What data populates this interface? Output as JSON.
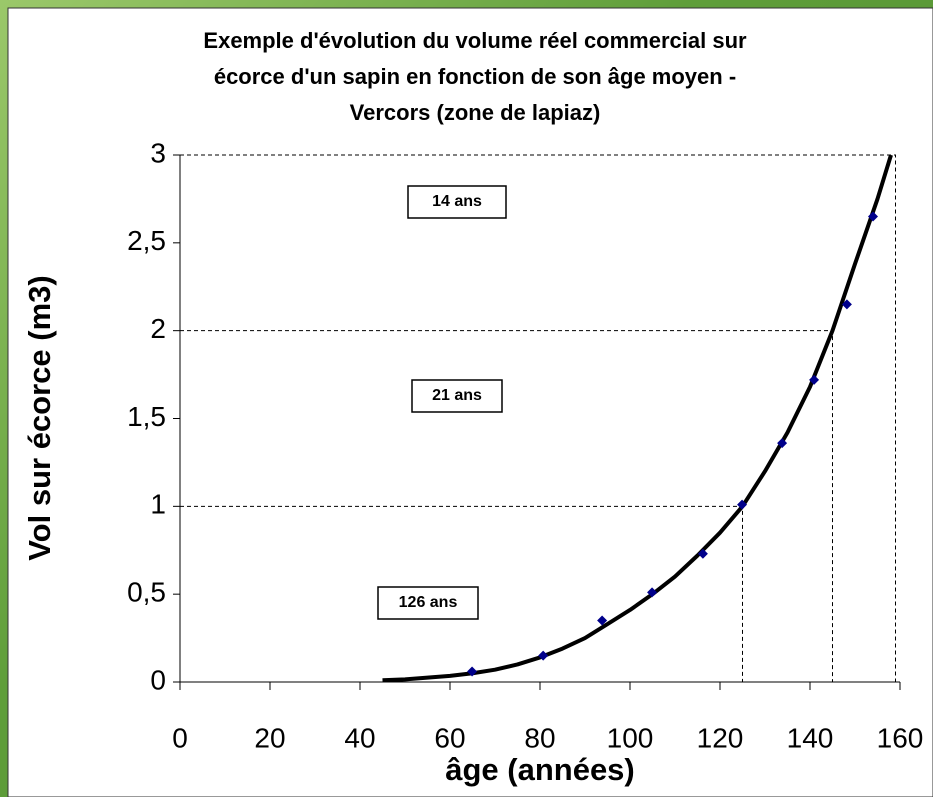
{
  "chart_data": {
    "type": "scatter",
    "title": [
      "Exemple d'évolution du volume réel commercial sur",
      "écorce d'un sapin en fonction de son âge moyen -",
      "Vercors (zone de lapiaz)"
    ],
    "x_label": "âge (années)",
    "y_label": "Vol sur écorce (m3)",
    "xlim": [
      0,
      160
    ],
    "xticks": [
      0,
      20,
      40,
      60,
      80,
      100,
      120,
      140,
      160
    ],
    "ylim": [
      0,
      3
    ],
    "yticks": [
      0,
      {
        "value": 0.5,
        "label": "0,5"
      },
      1,
      {
        "value": 1.5,
        "label": "1,5"
      },
      2,
      {
        "value": 2.5,
        "label": "2,5"
      },
      3
    ],
    "points": {
      "color": "#00008b",
      "x": [
        64.9,
        80.7,
        93.8,
        104.9,
        116.2,
        124.9,
        133.8,
        140.9,
        148.2,
        154
      ],
      "values": [
        0.06,
        0.15,
        0.35,
        0.51,
        0.73,
        1.01,
        1.36,
        1.72,
        2.15,
        2.65
      ]
    },
    "trend": {
      "color": "#000000",
      "x": [
        45,
        50,
        55,
        60,
        65,
        70,
        75,
        80,
        85,
        90,
        95,
        100,
        105,
        110,
        115,
        120,
        125,
        130,
        135,
        140,
        145,
        150,
        155,
        158
      ],
      "values": [
        0.01,
        0.015,
        0.025,
        0.035,
        0.05,
        0.07,
        0.1,
        0.14,
        0.19,
        0.25,
        0.33,
        0.41,
        0.5,
        0.6,
        0.72,
        0.85,
        1.0,
        1.2,
        1.42,
        1.68,
        2.0,
        2.38,
        2.75,
        3.0
      ]
    },
    "reference_lines": [
      {
        "x": 125,
        "y": 1
      },
      {
        "x": 145,
        "y": 2
      },
      {
        "x": 159,
        "y": 3
      }
    ],
    "annotations": [
      "14 ans",
      "21 ans",
      "126 ans"
    ]
  }
}
